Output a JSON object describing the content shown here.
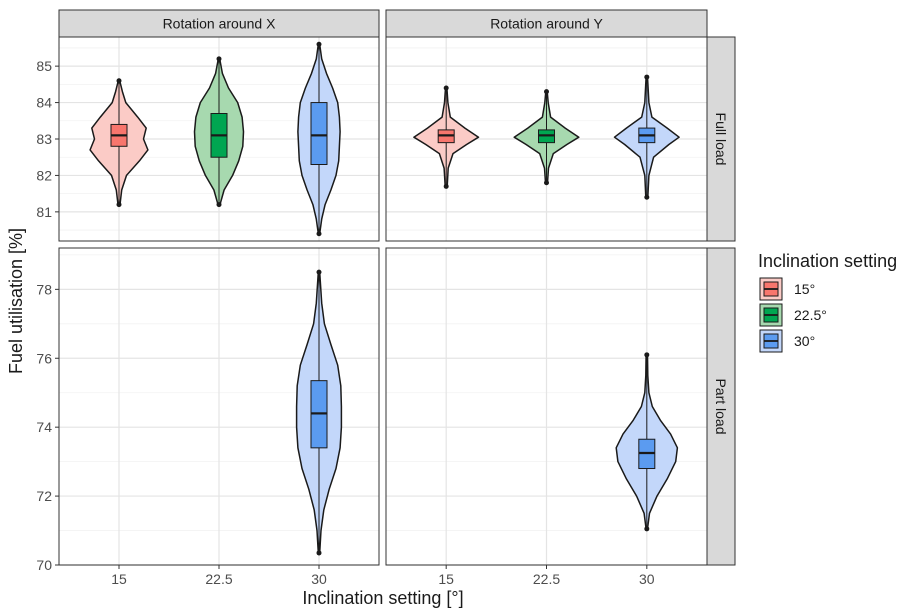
{
  "chart_data": {
    "type": "violin",
    "xlabel": "Inclination setting [°]",
    "ylabel": "Fuel utilisation [%]",
    "categories": [
      "15",
      "22.5",
      "30"
    ],
    "facet_columns": [
      "Rotation around X",
      "Rotation around Y"
    ],
    "facet_rows": [
      "Full load",
      "Part load"
    ],
    "grid": true,
    "legend": {
      "title": "Inclination setting",
      "position": "right",
      "entries": [
        {
          "label": "15°",
          "fill": "#F8766D",
          "violin_fill": "#FBCBC6"
        },
        {
          "label": "22.5°",
          "fill": "#00A651",
          "violin_fill": "#A7D9AF"
        },
        {
          "label": "30°",
          "fill": "#5B9BF0",
          "violin_fill": "#C3D7FA"
        }
      ]
    },
    "rows": [
      {
        "name": "Full load",
        "ylim": [
          80.2,
          85.8
        ],
        "yticks": [
          81,
          82,
          83,
          84,
          85
        ],
        "minor_ticks": [
          80.5,
          81.5,
          82.5,
          83.5,
          84.5,
          85.5
        ]
      },
      {
        "name": "Part load",
        "ylim": [
          70.0,
          79.2
        ],
        "yticks": [
          70,
          72,
          74,
          76,
          78
        ],
        "minor_ticks": [
          71,
          73,
          75,
          77,
          79
        ]
      }
    ],
    "panels": [
      {
        "column": "Rotation around X",
        "row": "Full load",
        "violins": [
          {
            "category": "15",
            "min": 81.2,
            "q1": 82.8,
            "median": 83.1,
            "q3": 83.4,
            "max": 84.6,
            "profile": [
              [
                81.2,
                0.03
              ],
              [
                81.6,
                0.08
              ],
              [
                82.0,
                0.22
              ],
              [
                82.4,
                0.6
              ],
              [
                82.7,
                0.85
              ],
              [
                83.0,
                0.72
              ],
              [
                83.3,
                0.8
              ],
              [
                83.6,
                0.55
              ],
              [
                84.0,
                0.2
              ],
              [
                84.3,
                0.1
              ],
              [
                84.6,
                0.02
              ]
            ]
          },
          {
            "category": "22.5",
            "min": 81.2,
            "q1": 82.5,
            "median": 83.1,
            "q3": 83.7,
            "max": 85.2,
            "profile": [
              [
                81.2,
                0.03
              ],
              [
                81.6,
                0.15
              ],
              [
                82.0,
                0.4
              ],
              [
                82.4,
                0.58
              ],
              [
                82.8,
                0.7
              ],
              [
                83.2,
                0.72
              ],
              [
                83.6,
                0.68
              ],
              [
                84.0,
                0.55
              ],
              [
                84.4,
                0.28
              ],
              [
                84.8,
                0.1
              ],
              [
                85.2,
                0.02
              ]
            ]
          },
          {
            "category": "30",
            "min": 80.4,
            "q1": 82.3,
            "median": 83.1,
            "q3": 84.0,
            "max": 85.6,
            "profile": [
              [
                80.4,
                0.02
              ],
              [
                80.8,
                0.08
              ],
              [
                81.2,
                0.18
              ],
              [
                81.6,
                0.35
              ],
              [
                82.0,
                0.5
              ],
              [
                82.4,
                0.58
              ],
              [
                82.8,
                0.6
              ],
              [
                83.2,
                0.62
              ],
              [
                83.6,
                0.6
              ],
              [
                84.0,
                0.55
              ],
              [
                84.4,
                0.4
              ],
              [
                84.8,
                0.22
              ],
              [
                85.2,
                0.08
              ],
              [
                85.6,
                0.02
              ]
            ]
          }
        ]
      },
      {
        "column": "Rotation around Y",
        "row": "Full load",
        "violins": [
          {
            "category": "15",
            "min": 81.7,
            "q1": 82.9,
            "median": 83.1,
            "q3": 83.25,
            "max": 84.4,
            "profile": [
              [
                81.7,
                0.03
              ],
              [
                82.2,
                0.06
              ],
              [
                82.6,
                0.2
              ],
              [
                82.85,
                0.6
              ],
              [
                83.05,
                0.95
              ],
              [
                83.3,
                0.55
              ],
              [
                83.6,
                0.12
              ],
              [
                84.0,
                0.05
              ],
              [
                84.4,
                0.02
              ]
            ]
          },
          {
            "category": "22.5",
            "min": 81.8,
            "q1": 82.9,
            "median": 83.1,
            "q3": 83.25,
            "max": 84.3,
            "profile": [
              [
                81.8,
                0.03
              ],
              [
                82.2,
                0.06
              ],
              [
                82.6,
                0.2
              ],
              [
                82.85,
                0.6
              ],
              [
                83.05,
                0.95
              ],
              [
                83.3,
                0.55
              ],
              [
                83.6,
                0.12
              ],
              [
                84.0,
                0.05
              ],
              [
                84.3,
                0.02
              ]
            ]
          },
          {
            "category": "30",
            "min": 81.4,
            "q1": 82.9,
            "median": 83.1,
            "q3": 83.3,
            "max": 84.7,
            "profile": [
              [
                81.4,
                0.03
              ],
              [
                82.0,
                0.06
              ],
              [
                82.5,
                0.2
              ],
              [
                82.85,
                0.65
              ],
              [
                83.05,
                0.95
              ],
              [
                83.3,
                0.6
              ],
              [
                83.6,
                0.15
              ],
              [
                84.0,
                0.06
              ],
              [
                84.7,
                0.02
              ]
            ]
          }
        ]
      },
      {
        "column": "Rotation around X",
        "row": "Part load",
        "violins": [
          {
            "category": "30",
            "min": 70.35,
            "q1": 73.4,
            "median": 74.4,
            "q3": 75.35,
            "max": 78.5,
            "profile": [
              [
                70.35,
                0.02
              ],
              [
                71.0,
                0.06
              ],
              [
                71.6,
                0.14
              ],
              [
                72.2,
                0.3
              ],
              [
                72.8,
                0.5
              ],
              [
                73.4,
                0.62
              ],
              [
                74.0,
                0.66
              ],
              [
                74.6,
                0.66
              ],
              [
                75.2,
                0.64
              ],
              [
                75.8,
                0.55
              ],
              [
                76.4,
                0.35
              ],
              [
                77.0,
                0.16
              ],
              [
                77.6,
                0.08
              ],
              [
                78.5,
                0.02
              ]
            ]
          }
        ]
      },
      {
        "column": "Rotation around Y",
        "row": "Part load",
        "violins": [
          {
            "category": "30",
            "min": 71.05,
            "q1": 72.8,
            "median": 73.25,
            "q3": 73.65,
            "max": 76.1,
            "profile": [
              [
                71.05,
                0.02
              ],
              [
                71.5,
                0.08
              ],
              [
                72.0,
                0.3
              ],
              [
                72.5,
                0.6
              ],
              [
                73.0,
                0.85
              ],
              [
                73.4,
                0.9
              ],
              [
                73.8,
                0.7
              ],
              [
                74.2,
                0.4
              ],
              [
                74.6,
                0.16
              ],
              [
                75.0,
                0.06
              ],
              [
                75.5,
                0.03
              ],
              [
                76.1,
                0.02
              ]
            ]
          }
        ]
      }
    ]
  }
}
